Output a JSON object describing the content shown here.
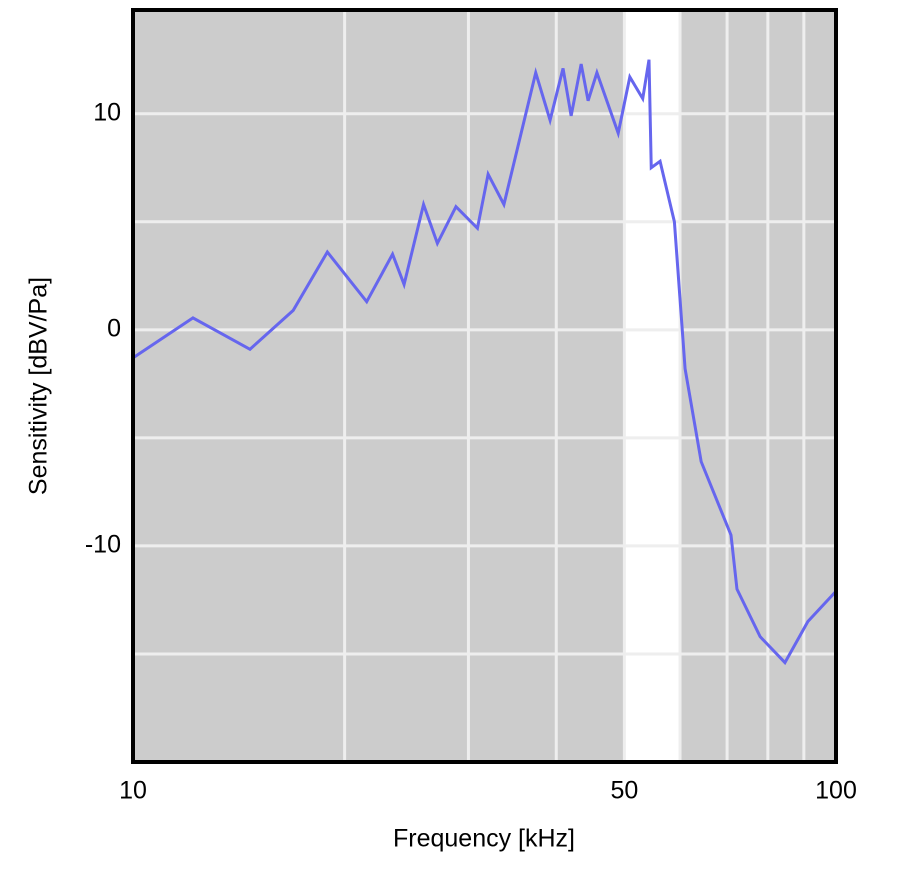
{
  "chart_data": {
    "type": "line",
    "x_label": "Frequency [kHz]",
    "y_label": "Sensitivity [dBV/Pa]",
    "log_x": true,
    "xlim": [
      10,
      100
    ],
    "xticks": [
      10,
      50,
      100
    ],
    "xgrid": [
      20,
      30,
      40,
      50,
      60,
      70,
      80,
      90
    ],
    "ylim": [
      -20,
      14.8
    ],
    "yticks": [
      -10,
      0,
      10
    ],
    "ygrid": [
      -15,
      -10,
      -5,
      0,
      5,
      10
    ],
    "grid": true,
    "background": "#cccccc",
    "highlight_span": [
      50,
      60
    ],
    "highlight_color": "#ffffff",
    "series": [
      {
        "color": "#6666ee",
        "x": [
          10,
          12.17,
          14.67,
          16.9,
          18.9,
          21.5,
          23.4,
          24.3,
          25.9,
          27.1,
          28.8,
          30.9,
          32.0,
          33.7,
          37.4,
          39.2,
          40.9,
          42.0,
          43.4,
          44.4,
          45.7,
          49.0,
          50.9,
          53.1,
          54.2,
          54.6,
          56.2,
          58.9,
          61.0,
          64.3,
          70.9,
          72.3,
          78.0,
          84.6,
          91.2,
          100
        ],
        "values": [
          -1.3,
          0.55,
          -0.9,
          0.9,
          3.6,
          1.3,
          3.5,
          2.1,
          5.8,
          4.0,
          5.7,
          4.7,
          7.2,
          5.8,
          11.9,
          9.7,
          12.1,
          9.9,
          12.3,
          10.6,
          11.9,
          9.1,
          11.7,
          10.7,
          12.5,
          7.5,
          7.8,
          5.0,
          -1.8,
          -6.1,
          -9.5,
          -12.0,
          -14.2,
          -15.4,
          -13.5,
          -12.1
        ]
      }
    ]
  }
}
